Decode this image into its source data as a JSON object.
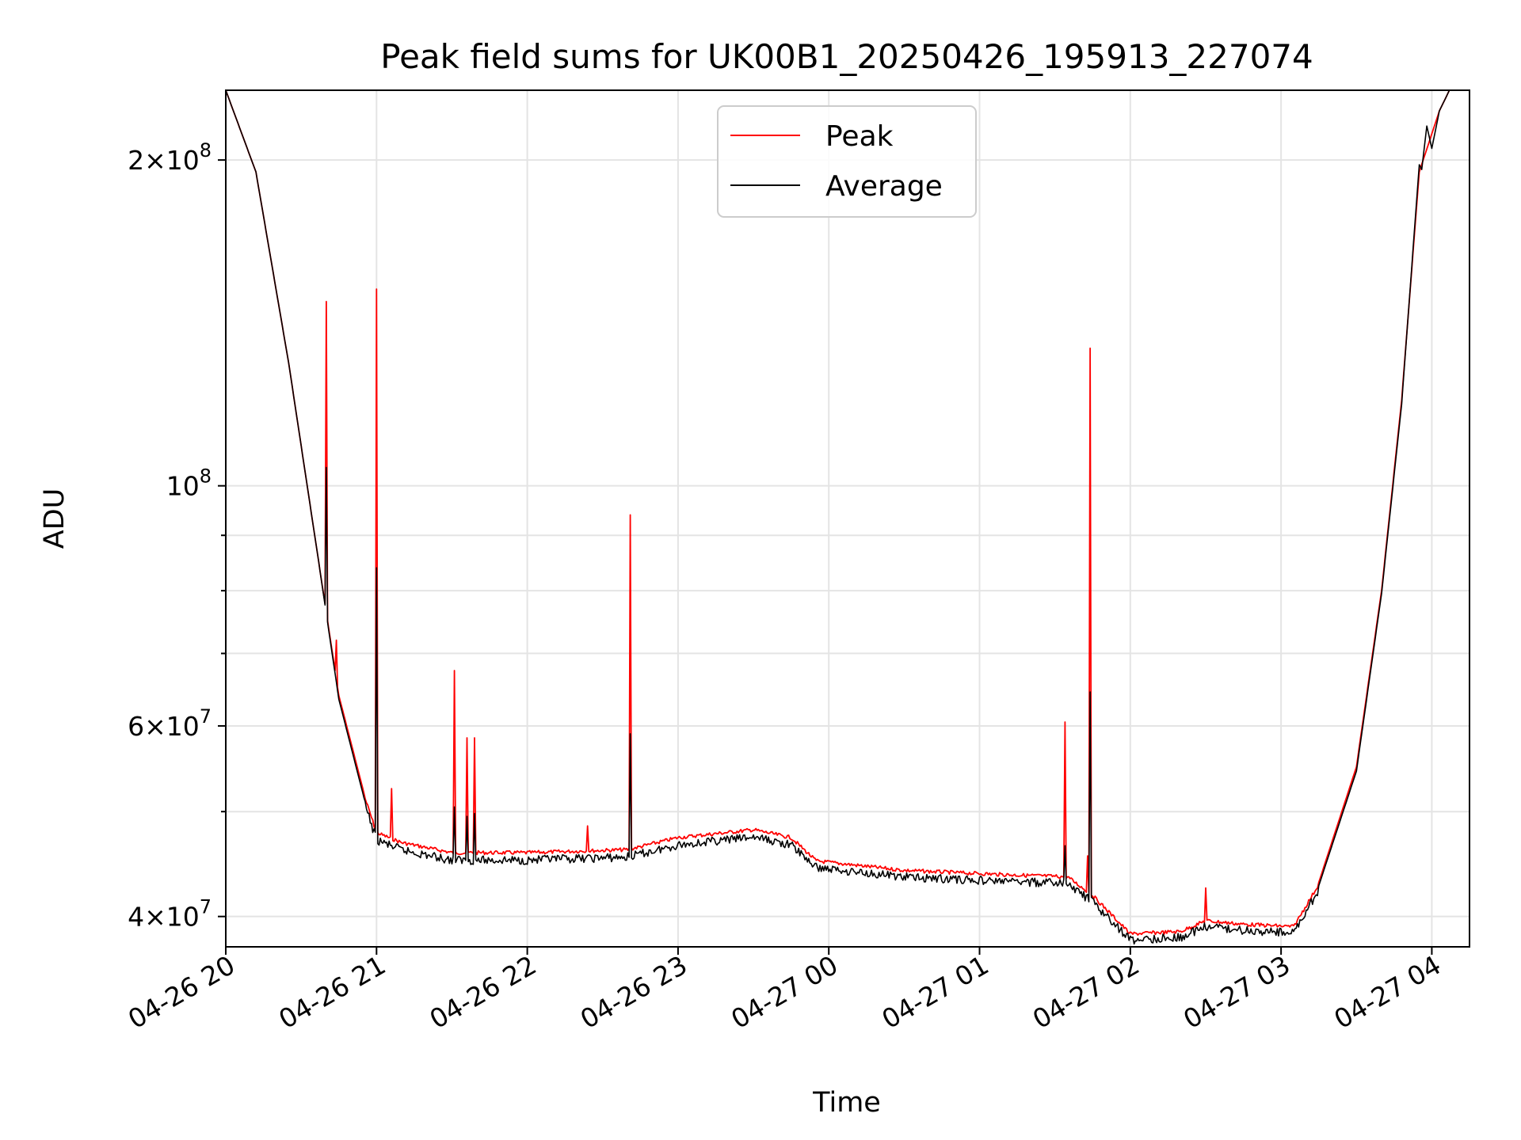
{
  "chart_data": {
    "type": "line",
    "title": "Peak field sums for UK00B1_20250426_195913_227074",
    "xlabel": "Time",
    "ylabel": "ADU",
    "yscale": "log",
    "grid": true,
    "legend_position": "upper center",
    "xlim": [
      "2025-04-26 20:00",
      "2025-04-27 04:15"
    ],
    "ylim": [
      37500000,
      232000000
    ],
    "x_ticks": [
      "04-26 20",
      "04-26 21",
      "04-26 22",
      "04-26 23",
      "04-27 00",
      "04-27 01",
      "04-27 02",
      "04-27 03",
      "04-27 04"
    ],
    "y_major_ticks": [
      {
        "value": 40000000,
        "mantissa": "4",
        "exp": "7"
      },
      {
        "value": 60000000,
        "mantissa": "6",
        "exp": "7"
      },
      {
        "value": 100000000,
        "mantissa": "",
        "exp": "8"
      },
      {
        "value": 200000000,
        "mantissa": "2",
        "exp": "8"
      }
    ],
    "y_minor_ticks": [
      50000000,
      70000000,
      80000000,
      90000000
    ],
    "series": [
      {
        "name": "Peak",
        "color": "#ff0000",
        "baseline": [
          [
            "2025-04-26 20:00",
            232000000
          ],
          [
            "2025-04-26 20:12",
            195000000
          ],
          [
            "2025-04-26 20:25",
            130000000
          ],
          [
            "2025-04-26 20:37",
            85000000
          ],
          [
            "2025-04-26 20:45",
            64000000
          ],
          [
            "2025-04-26 20:55",
            52000000
          ],
          [
            "2025-04-26 21:00",
            48000000
          ],
          [
            "2025-04-26 21:10",
            47000000
          ],
          [
            "2025-04-26 21:30",
            46000000
          ],
          [
            "2025-04-26 22:00",
            46000000
          ],
          [
            "2025-04-26 22:40",
            46300000
          ],
          [
            "2025-04-26 23:00",
            47500000
          ],
          [
            "2025-04-26 23:30",
            48300000
          ],
          [
            "2025-04-26 23:45",
            47500000
          ],
          [
            "2025-04-26 23:55",
            45200000
          ],
          [
            "2025-04-27 00:30",
            44300000
          ],
          [
            "2025-04-27 01:10",
            43900000
          ],
          [
            "2025-04-27 01:35",
            43700000
          ],
          [
            "2025-04-27 01:45",
            42000000
          ],
          [
            "2025-04-27 02:00",
            38700000
          ],
          [
            "2025-04-27 02:20",
            38900000
          ],
          [
            "2025-04-27 02:30",
            39800000
          ],
          [
            "2025-04-27 02:45",
            39500000
          ],
          [
            "2025-04-27 03:05",
            39300000
          ],
          [
            "2025-04-27 03:15",
            43000000
          ],
          [
            "2025-04-27 03:30",
            55000000
          ],
          [
            "2025-04-27 03:40",
            80000000
          ],
          [
            "2025-04-27 03:48",
            120000000
          ],
          [
            "2025-04-27 03:55",
            195000000
          ],
          [
            "2025-04-27 04:03",
            222000000
          ],
          [
            "2025-04-27 04:07",
            232000000
          ],
          [
            "2025-04-27 04:15",
            232000000
          ]
        ],
        "spikes": [
          [
            "2025-04-26 20:40",
            148000000
          ],
          [
            "2025-04-26 20:44",
            72000000
          ],
          [
            "2025-04-26 21:00",
            152000000
          ],
          [
            "2025-04-26 21:06",
            52500000
          ],
          [
            "2025-04-26 21:31",
            67500000
          ],
          [
            "2025-04-26 21:36",
            58500000
          ],
          [
            "2025-04-26 21:39",
            58500000
          ],
          [
            "2025-04-26 22:24",
            48500000
          ],
          [
            "2025-04-26 22:41",
            94000000
          ],
          [
            "2025-04-27 01:34",
            60500000
          ],
          [
            "2025-04-27 01:43",
            45500000
          ],
          [
            "2025-04-27 01:44",
            134000000
          ],
          [
            "2025-04-27 02:30",
            42500000
          ]
        ]
      },
      {
        "name": "Average",
        "color": "#000000",
        "baseline": [
          [
            "2025-04-26 20:00",
            232000000
          ],
          [
            "2025-04-26 20:12",
            195000000
          ],
          [
            "2025-04-26 20:25",
            130000000
          ],
          [
            "2025-04-26 20:37",
            85000000
          ],
          [
            "2025-04-26 20:45",
            63500000
          ],
          [
            "2025-04-26 20:55",
            51500000
          ],
          [
            "2025-04-26 21:00",
            47500000
          ],
          [
            "2025-04-26 21:10",
            46500000
          ],
          [
            "2025-04-26 21:30",
            45500000
          ],
          [
            "2025-04-26 22:00",
            45500000
          ],
          [
            "2025-04-26 22:40",
            45800000
          ],
          [
            "2025-04-26 23:00",
            47000000
          ],
          [
            "2025-04-26 23:30",
            47800000
          ],
          [
            "2025-04-26 23:45",
            47000000
          ],
          [
            "2025-04-26 23:55",
            44800000
          ],
          [
            "2025-04-27 00:30",
            43900000
          ],
          [
            "2025-04-27 01:10",
            43500000
          ],
          [
            "2025-04-27 01:35",
            43300000
          ],
          [
            "2025-04-27 01:45",
            41600000
          ],
          [
            "2025-04-27 02:00",
            38400000
          ],
          [
            "2025-04-27 02:20",
            38600000
          ],
          [
            "2025-04-27 02:30",
            39500000
          ],
          [
            "2025-04-27 02:45",
            39200000
          ],
          [
            "2025-04-27 03:05",
            39000000
          ],
          [
            "2025-04-27 03:15",
            42700000
          ],
          [
            "2025-04-27 03:30",
            54500000
          ],
          [
            "2025-04-27 03:40",
            79500000
          ],
          [
            "2025-04-27 03:48",
            119000000
          ],
          [
            "2025-04-27 03:55",
            198000000
          ],
          [
            "2025-04-27 03:56",
            196000000
          ],
          [
            "2025-04-27 03:58",
            215000000
          ],
          [
            "2025-04-27 04:00",
            205000000
          ],
          [
            "2025-04-27 04:03",
            222000000
          ],
          [
            "2025-04-27 04:07",
            232000000
          ],
          [
            "2025-04-27 04:15",
            232000000
          ]
        ],
        "spikes": [
          [
            "2025-04-26 20:40",
            104000000
          ],
          [
            "2025-04-26 21:00",
            84000000
          ],
          [
            "2025-04-26 21:31",
            50500000
          ],
          [
            "2025-04-26 21:36",
            49500000
          ],
          [
            "2025-04-26 21:39",
            49800000
          ],
          [
            "2025-04-26 22:41",
            59000000
          ],
          [
            "2025-04-27 01:34",
            46500000
          ],
          [
            "2025-04-27 01:44",
            64500000
          ]
        ]
      }
    ]
  }
}
